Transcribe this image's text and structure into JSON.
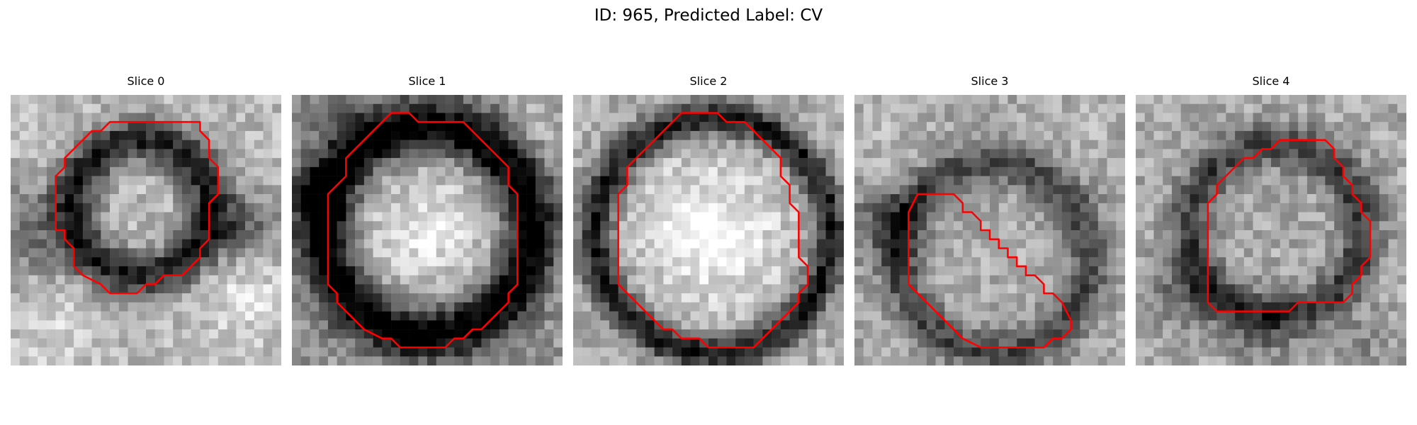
{
  "figure": {
    "title": "ID: 965, Predicted Label: CV",
    "contour_color": "#ff0000",
    "grid_size": 30,
    "panels": [
      {
        "title": "Slice 0",
        "pattern": "ring-small",
        "contour": [
          [
            12,
            3
          ],
          [
            21,
            3
          ],
          [
            21,
            4
          ],
          [
            22,
            5
          ],
          [
            22,
            7
          ],
          [
            23,
            8
          ],
          [
            23,
            11
          ],
          [
            22,
            12
          ],
          [
            22,
            16
          ],
          [
            21,
            17
          ],
          [
            21,
            18
          ],
          [
            20,
            19
          ],
          [
            19,
            20
          ],
          [
            17,
            20
          ],
          [
            16,
            21
          ],
          [
            15,
            21
          ],
          [
            14,
            22
          ],
          [
            11,
            22
          ],
          [
            10,
            21
          ],
          [
            8,
            20
          ],
          [
            7,
            19
          ],
          [
            7,
            17
          ],
          [
            6,
            16
          ],
          [
            6,
            15
          ],
          [
            5,
            15
          ],
          [
            5,
            9
          ],
          [
            6,
            8
          ],
          [
            6,
            7
          ],
          [
            7,
            6
          ],
          [
            8,
            5
          ],
          [
            9,
            4
          ],
          [
            10,
            4
          ],
          [
            11,
            3
          ]
        ]
      },
      {
        "title": "Slice 1",
        "pattern": "bright-core",
        "contour": [
          [
            11,
            2
          ],
          [
            13,
            2
          ],
          [
            14,
            3
          ],
          [
            19,
            3
          ],
          [
            20,
            4
          ],
          [
            21,
            5
          ],
          [
            22,
            6
          ],
          [
            23,
            7
          ],
          [
            24,
            8
          ],
          [
            24,
            10
          ],
          [
            25,
            11
          ],
          [
            25,
            21
          ],
          [
            24,
            22
          ],
          [
            24,
            23
          ],
          [
            23,
            24
          ],
          [
            22,
            25
          ],
          [
            21,
            26
          ],
          [
            20,
            26
          ],
          [
            19,
            27
          ],
          [
            18,
            27
          ],
          [
            17,
            28
          ],
          [
            12,
            28
          ],
          [
            11,
            27
          ],
          [
            10,
            27
          ],
          [
            8,
            26
          ],
          [
            7,
            25
          ],
          [
            6,
            24
          ],
          [
            5,
            23
          ],
          [
            5,
            22
          ],
          [
            4,
            21
          ],
          [
            4,
            11
          ],
          [
            5,
            10
          ],
          [
            6,
            9
          ],
          [
            6,
            7
          ],
          [
            7,
            6
          ],
          [
            8,
            5
          ],
          [
            9,
            4
          ],
          [
            10,
            3
          ]
        ]
      },
      {
        "title": "Slice 2",
        "pattern": "ring-large",
        "contour": [
          [
            12,
            2
          ],
          [
            16,
            2
          ],
          [
            17,
            3
          ],
          [
            19,
            3
          ],
          [
            20,
            4
          ],
          [
            21,
            5
          ],
          [
            22,
            6
          ],
          [
            23,
            7
          ],
          [
            23,
            9
          ],
          [
            24,
            10
          ],
          [
            24,
            12
          ],
          [
            25,
            13
          ],
          [
            25,
            18
          ],
          [
            26,
            19
          ],
          [
            26,
            21
          ],
          [
            25,
            22
          ],
          [
            25,
            23
          ],
          [
            24,
            24
          ],
          [
            23,
            25
          ],
          [
            22,
            26
          ],
          [
            21,
            27
          ],
          [
            20,
            28
          ],
          [
            15,
            28
          ],
          [
            14,
            27
          ],
          [
            12,
            27
          ],
          [
            11,
            26
          ],
          [
            10,
            26
          ],
          [
            9,
            25
          ],
          [
            8,
            24
          ],
          [
            7,
            23
          ],
          [
            6,
            22
          ],
          [
            5,
            21
          ],
          [
            5,
            11
          ],
          [
            6,
            10
          ],
          [
            6,
            8
          ],
          [
            7,
            7
          ],
          [
            8,
            6
          ],
          [
            9,
            5
          ],
          [
            10,
            4
          ],
          [
            11,
            3
          ]
        ]
      },
      {
        "title": "Slice 3",
        "pattern": "diffuse",
        "contour": [
          [
            7,
            11
          ],
          [
            11,
            11
          ],
          [
            12,
            12
          ],
          [
            12,
            13
          ],
          [
            13,
            13
          ],
          [
            14,
            14
          ],
          [
            14,
            15
          ],
          [
            15,
            15
          ],
          [
            15,
            16
          ],
          [
            16,
            16
          ],
          [
            16,
            17
          ],
          [
            17,
            17
          ],
          [
            17,
            18
          ],
          [
            18,
            18
          ],
          [
            18,
            19
          ],
          [
            19,
            19
          ],
          [
            19,
            20
          ],
          [
            20,
            20
          ],
          [
            21,
            21
          ],
          [
            21,
            22
          ],
          [
            22,
            22
          ],
          [
            23,
            23
          ],
          [
            24,
            25
          ],
          [
            24,
            26
          ],
          [
            23,
            27
          ],
          [
            22,
            27
          ],
          [
            21,
            28
          ],
          [
            14,
            28
          ],
          [
            12,
            27
          ],
          [
            11,
            26
          ],
          [
            10,
            25
          ],
          [
            9,
            24
          ],
          [
            8,
            23
          ],
          [
            7,
            22
          ],
          [
            6,
            21
          ],
          [
            6,
            20
          ],
          [
            6,
            13
          ]
        ]
      },
      {
        "title": "Slice 4",
        "pattern": "ring-faint",
        "contour": [
          [
            16,
            5
          ],
          [
            21,
            5
          ],
          [
            22,
            6
          ],
          [
            22,
            7
          ],
          [
            23,
            8
          ],
          [
            23,
            9
          ],
          [
            24,
            10
          ],
          [
            24,
            11
          ],
          [
            25,
            12
          ],
          [
            25,
            13
          ],
          [
            26,
            14
          ],
          [
            26,
            18
          ],
          [
            25,
            19
          ],
          [
            25,
            20
          ],
          [
            24,
            21
          ],
          [
            24,
            22
          ],
          [
            23,
            23
          ],
          [
            18,
            23
          ],
          [
            17,
            24
          ],
          [
            9,
            24
          ],
          [
            8,
            23
          ],
          [
            8,
            12
          ],
          [
            9,
            11
          ],
          [
            9,
            10
          ],
          [
            10,
            9
          ],
          [
            11,
            8
          ],
          [
            12,
            7
          ],
          [
            13,
            7
          ],
          [
            14,
            6
          ],
          [
            15,
            6
          ]
        ]
      }
    ]
  }
}
